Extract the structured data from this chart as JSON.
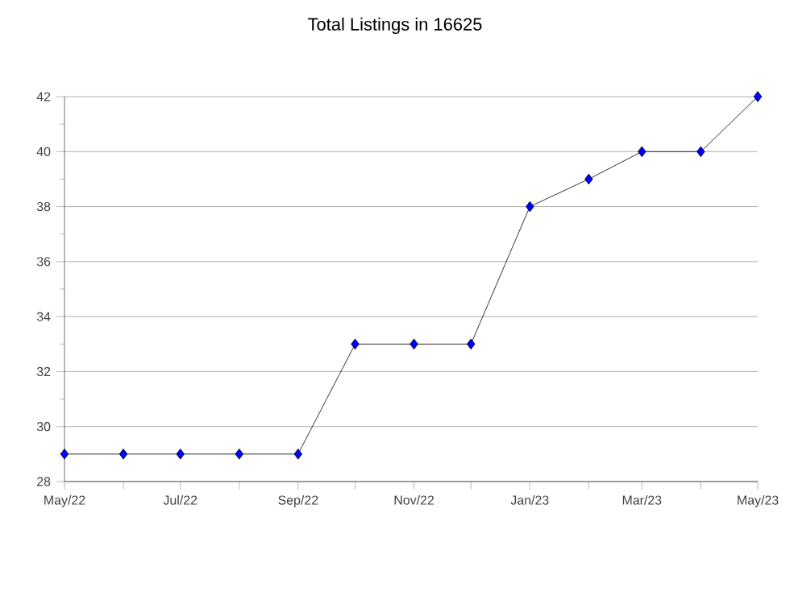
{
  "chart_data": {
    "type": "line",
    "title": "Total Listings in 16625",
    "x": [
      "2022-05",
      "2022-06",
      "2022-07",
      "2022-08",
      "2022-09",
      "2022-10",
      "2022-11",
      "2022-12",
      "2023-01",
      "2023-02",
      "2023-03",
      "2023-04",
      "2023-05"
    ],
    "series": [
      {
        "color": "#0000ff",
        "values": [
          29,
          29,
          29,
          29,
          29,
          33,
          33,
          33,
          38,
          39,
          40,
          40,
          42
        ]
      }
    ],
    "xlim": [
      "2022-05",
      "2023-05"
    ],
    "xticks": [
      {
        "value": "2022-05",
        "label": "May/22"
      },
      {
        "value": "2022-06",
        "label": null
      },
      {
        "value": "2022-07",
        "label": "Jul/22"
      },
      {
        "value": "2022-08",
        "label": null
      },
      {
        "value": "2022-09",
        "label": "Sep/22"
      },
      {
        "value": "2022-10",
        "label": null
      },
      {
        "value": "2022-11",
        "label": "Nov/22"
      },
      {
        "value": "2022-12",
        "label": null
      },
      {
        "value": "2023-01",
        "label": "Jan/23"
      },
      {
        "value": "2023-02",
        "label": null
      },
      {
        "value": "2023-03",
        "label": "Mar/23"
      },
      {
        "value": "2023-04",
        "label": null
      },
      {
        "value": "2023-05",
        "label": "May/23"
      }
    ],
    "ylim": [
      28,
      42
    ],
    "yticks": [
      28,
      {
        "value": 29,
        "label": null
      },
      30,
      {
        "value": 31,
        "label": null
      },
      32,
      {
        "value": 33,
        "label": null
      },
      34,
      {
        "value": 35,
        "label": null
      },
      36,
      {
        "value": 37,
        "label": null
      },
      38,
      {
        "value": 39,
        "label": null
      },
      40,
      {
        "value": 41,
        "label": null
      },
      42
    ],
    "grid": "y",
    "marker": "diamond",
    "line_style": "solid"
  }
}
